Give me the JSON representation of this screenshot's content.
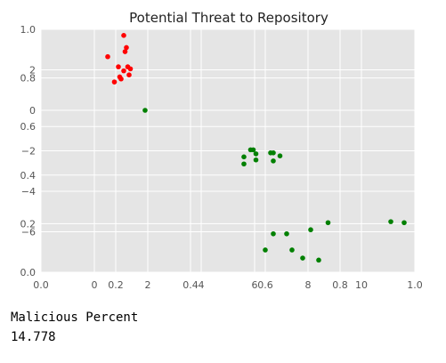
{
  "chart_data": {
    "type": "scatter",
    "title": "Potential Threat to Repository",
    "background": "#e5e5e5",
    "grid": true,
    "outer_axis": {
      "xlim": [
        0,
        1
      ],
      "ylim": [
        0,
        1
      ],
      "xticks": [
        "0.0",
        "0.2",
        "0.4",
        "0.6",
        "0.8",
        "1.0"
      ],
      "yticks": [
        "0.0",
        "0.2",
        "0.4",
        "0.6",
        "0.8",
        "1.0"
      ]
    },
    "inner_axis": {
      "xlim": [
        -2,
        12
      ],
      "ylim": [
        -8,
        4
      ],
      "xticks": [
        "0",
        "2",
        "4",
        "6",
        "8",
        "10"
      ],
      "yticks": [
        "2",
        "0",
        "-2",
        "-4",
        "-6"
      ]
    },
    "series": [
      {
        "color": "#ff0000",
        "points": [
          {
            "x": 0.5,
            "y": 2.65
          },
          {
            "x": 0.9,
            "y": 2.15
          },
          {
            "x": 1.0,
            "y": 1.55
          },
          {
            "x": 1.1,
            "y": 1.95
          },
          {
            "x": 1.3,
            "y": 1.75
          },
          {
            "x": 1.35,
            "y": 2.05
          },
          {
            "x": 1.1,
            "y": 3.7
          },
          {
            "x": 1.2,
            "y": 3.1
          },
          {
            "x": 1.15,
            "y": 2.9
          },
          {
            "x": 1.25,
            "y": 2.15
          },
          {
            "x": 0.75,
            "y": 1.4
          },
          {
            "x": 0.95,
            "y": 1.65
          }
        ]
      },
      {
        "color": "#008000",
        "points": [
          {
            "x": 1.9,
            "y": 0.0
          },
          {
            "x": 5.6,
            "y": -2.3
          },
          {
            "x": 5.6,
            "y": -2.65
          },
          {
            "x": 5.85,
            "y": -1.95
          },
          {
            "x": 5.95,
            "y": -1.95
          },
          {
            "x": 6.05,
            "y": -2.15
          },
          {
            "x": 6.05,
            "y": -2.45
          },
          {
            "x": 6.6,
            "y": -2.1
          },
          {
            "x": 6.7,
            "y": -2.1
          },
          {
            "x": 6.7,
            "y": -2.5
          },
          {
            "x": 6.95,
            "y": -2.25
          },
          {
            "x": 6.4,
            "y": -6.9
          },
          {
            "x": 6.7,
            "y": -6.1
          },
          {
            "x": 7.2,
            "y": -6.1
          },
          {
            "x": 7.4,
            "y": -6.9
          },
          {
            "x": 7.8,
            "y": -7.3
          },
          {
            "x": 8.1,
            "y": -5.9
          },
          {
            "x": 8.4,
            "y": -7.4
          },
          {
            "x": 8.75,
            "y": -5.55
          },
          {
            "x": 11.1,
            "y": -5.5
          },
          {
            "x": 11.6,
            "y": -5.55
          }
        ]
      }
    ]
  },
  "output": {
    "label": "Malicious Percent",
    "value": "14.778"
  }
}
